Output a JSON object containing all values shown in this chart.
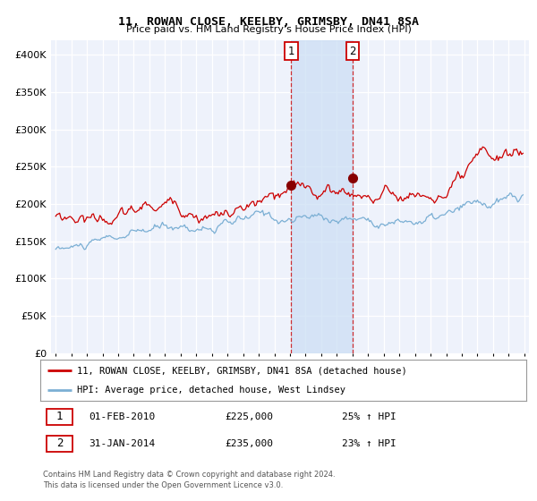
{
  "title": "11, ROWAN CLOSE, KEELBY, GRIMSBY, DN41 8SA",
  "subtitle": "Price paid vs. HM Land Registry's House Price Index (HPI)",
  "legend_line1": "11, ROWAN CLOSE, KEELBY, GRIMSBY, DN41 8SA (detached house)",
  "legend_line2": "HPI: Average price, detached house, West Lindsey",
  "transaction1_date": "01-FEB-2010",
  "transaction1_price": 225000,
  "transaction1_hpi": "25% ↑ HPI",
  "transaction2_date": "31-JAN-2014",
  "transaction2_price": 235000,
  "transaction2_hpi": "23% ↑ HPI",
  "footnote1": "Contains HM Land Registry data © Crown copyright and database right 2024.",
  "footnote2": "This data is licensed under the Open Government Licence v3.0.",
  "red_color": "#cc0000",
  "blue_color": "#7bafd4",
  "bg_color": "#eef2fb",
  "marker_color": "#880000",
  "vline1_color": "#cc0000",
  "vline2_color": "#cc0000",
  "shade_color": "#cddff5",
  "ylim": [
    0,
    420000
  ],
  "yticks": [
    0,
    50000,
    100000,
    150000,
    200000,
    250000,
    300000,
    350000,
    400000
  ],
  "start_year": 1995,
  "end_year": 2025
}
